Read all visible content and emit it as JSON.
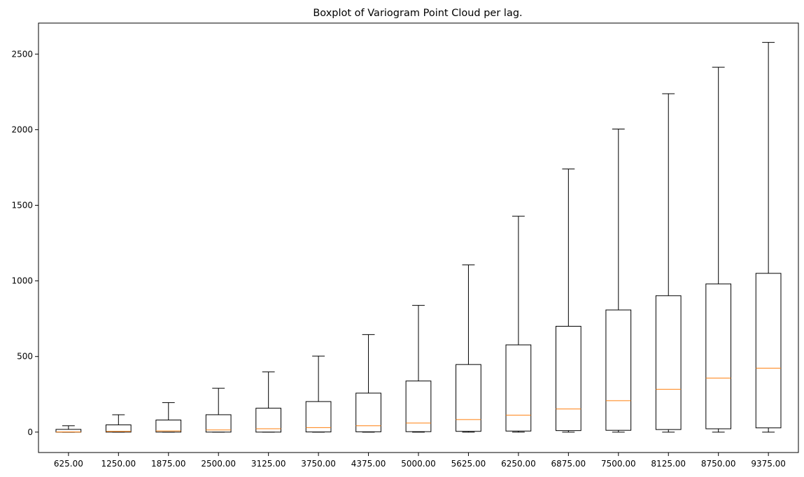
{
  "chart_data": {
    "type": "boxplot",
    "title": "Boxplot of Variogram Point Cloud per lag.",
    "xlabel": "",
    "ylabel": "",
    "ylim": [
      -135,
      2705
    ],
    "yticks": [
      0,
      500,
      1000,
      1500,
      2000,
      2500
    ],
    "grid": false,
    "categories": [
      "625.00",
      "1250.00",
      "1875.00",
      "2500.00",
      "3125.00",
      "3750.00",
      "4375.00",
      "5000.00",
      "5625.00",
      "6250.00",
      "6875.00",
      "7500.00",
      "8125.00",
      "8750.00",
      "9375.00"
    ],
    "boxes": [
      {
        "whisker_low": 0,
        "q1": 0,
        "median": 1,
        "q3": 18,
        "whisker_high": 42
      },
      {
        "whisker_low": 0,
        "q1": 0,
        "median": 5,
        "q3": 48,
        "whisker_high": 115
      },
      {
        "whisker_low": 0,
        "q1": 0,
        "median": 8,
        "q3": 80,
        "whisker_high": 195
      },
      {
        "whisker_low": 0,
        "q1": 0,
        "median": 14,
        "q3": 115,
        "whisker_high": 290
      },
      {
        "whisker_low": 0,
        "q1": 0,
        "median": 22,
        "q3": 158,
        "whisker_high": 398
      },
      {
        "whisker_low": 0,
        "q1": 1,
        "median": 30,
        "q3": 202,
        "whisker_high": 503
      },
      {
        "whisker_low": 0,
        "q1": 2,
        "median": 42,
        "q3": 258,
        "whisker_high": 645
      },
      {
        "whisker_low": 0,
        "q1": 3,
        "median": 60,
        "q3": 338,
        "whisker_high": 838
      },
      {
        "whisker_low": 0,
        "q1": 5,
        "median": 83,
        "q3": 447,
        "whisker_high": 1106
      },
      {
        "whisker_low": 0,
        "q1": 7,
        "median": 112,
        "q3": 577,
        "whisker_high": 1428
      },
      {
        "whisker_low": 0,
        "q1": 10,
        "median": 153,
        "q3": 700,
        "whisker_high": 1740
      },
      {
        "whisker_low": 0,
        "q1": 12,
        "median": 208,
        "q3": 808,
        "whisker_high": 2004
      },
      {
        "whisker_low": 0,
        "q1": 17,
        "median": 283,
        "q3": 902,
        "whisker_high": 2238
      },
      {
        "whisker_low": 0,
        "q1": 22,
        "median": 357,
        "q3": 980,
        "whisker_high": 2413
      },
      {
        "whisker_low": 0,
        "q1": 28,
        "median": 423,
        "q3": 1050,
        "whisker_high": 2577
      }
    ],
    "colors": {
      "box": "#000000",
      "median": "#ff7f0e",
      "background": "#ffffff"
    }
  }
}
